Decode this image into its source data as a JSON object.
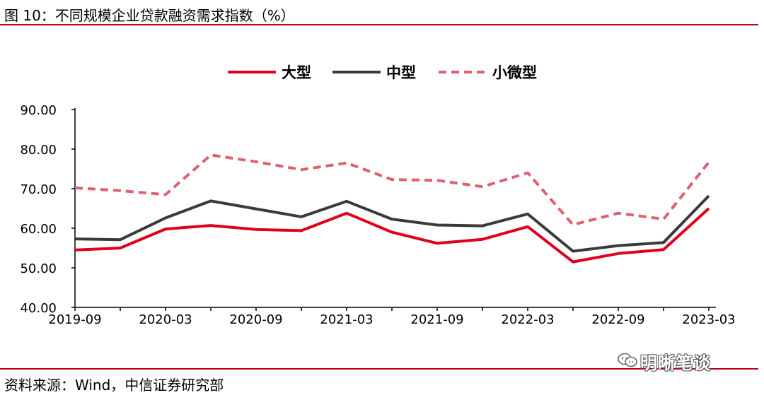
{
  "figure_title": "图 10：不同规模企业贷款融资需求指数（%）",
  "source": "资料来源：Wind，中信证券研究部",
  "watermark": "明晰笔谈",
  "colors": {
    "rule": "#c00018",
    "large": "#e0001b",
    "medium": "#3a3a3a",
    "small": "#e06070"
  },
  "chart_data": {
    "type": "line",
    "title": "",
    "xlabel": "",
    "ylabel": "",
    "ylim": [
      40,
      90
    ],
    "yticks": [
      "40.00",
      "50.00",
      "60.00",
      "70.00",
      "80.00",
      "90.00"
    ],
    "yticks_values": [
      40,
      50,
      60,
      70,
      80,
      90
    ],
    "legend_position": "top-center",
    "grid": false,
    "x": [
      "2019-09",
      "2019-12",
      "2020-03",
      "2020-06",
      "2020-09",
      "2020-12",
      "2021-03",
      "2021-06",
      "2021-09",
      "2021-12",
      "2022-03",
      "2022-06",
      "2022-09",
      "2022-12",
      "2023-03"
    ],
    "xtick_labels": [
      "2019-09",
      "2020-03",
      "2020-09",
      "2021-03",
      "2021-09",
      "2022-03",
      "2022-09",
      "2023-03"
    ],
    "series": [
      {
        "name": "大型",
        "style": "solid",
        "values": [
          54.5,
          55.0,
          59.8,
          60.7,
          59.7,
          59.4,
          63.8,
          59.0,
          56.2,
          57.2,
          60.4,
          51.5,
          53.6,
          54.6,
          65.0
        ]
      },
      {
        "name": "中型",
        "style": "solid",
        "values": [
          57.3,
          57.1,
          62.6,
          66.9,
          64.9,
          62.9,
          66.8,
          62.3,
          60.8,
          60.6,
          63.6,
          54.2,
          55.6,
          56.4,
          68.2
        ]
      },
      {
        "name": "小微型",
        "style": "dashed",
        "values": [
          70.2,
          69.5,
          68.5,
          78.5,
          76.8,
          74.8,
          76.5,
          72.3,
          72.1,
          70.5,
          74.0,
          60.9,
          63.8,
          62.3,
          76.7
        ]
      }
    ]
  }
}
